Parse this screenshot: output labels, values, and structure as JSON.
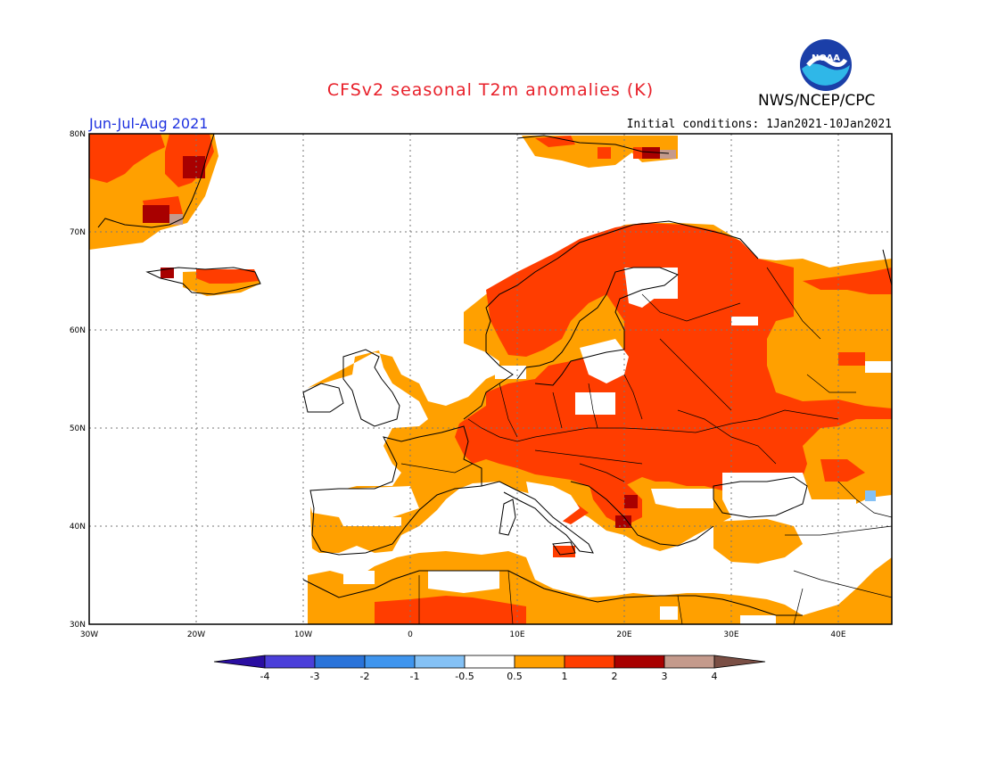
{
  "header": {
    "title": "CFSv2 seasonal T2m anomalies (K)",
    "agency": "NWS/NCEP/CPC",
    "logo_text": "NOAA",
    "season": "Jun-Jul-Aug 2021",
    "initial_conditions": "Initial conditions: 1Jan2021-10Jan2021"
  },
  "map": {
    "projection": "lat-lon",
    "lon_range": [
      -30,
      45
    ],
    "lat_range": [
      30,
      80
    ],
    "lat_ticks": [
      "30N",
      "40N",
      "50N",
      "60N",
      "70N",
      "80N"
    ],
    "lon_ticks": [
      "30W",
      "20W",
      "10W",
      "0",
      "10E",
      "20E",
      "30E",
      "40E"
    ],
    "gridlines": "dotted"
  },
  "legend": {
    "labels": [
      "-4",
      "-3",
      "-2",
      "-1",
      "-0.5",
      "0.5",
      "1",
      "2",
      "3",
      "4"
    ],
    "colors": [
      "#2a0ea1",
      "#4b3fd9",
      "#2a73d9",
      "#3f95ee",
      "#84c1f5",
      "#ffffff",
      "#ffa000",
      "#ff3d00",
      "#a80000",
      "#c49a8c",
      "#7a4e44"
    ]
  },
  "colors": {
    "anom_0_5_1": "#ffa000",
    "anom_1_2": "#ff3d00",
    "anom_2_3": "#a80000",
    "anom_3_4": "#c49a8c",
    "anom_neg": "#84c1f5",
    "title": "#e8202a",
    "season": "#2033e0"
  }
}
